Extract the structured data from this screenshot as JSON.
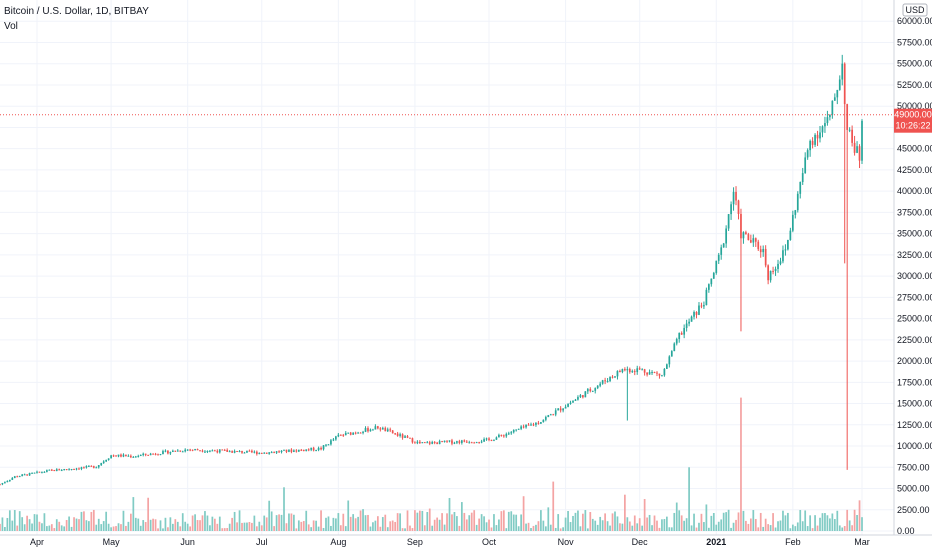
{
  "legend": {
    "symbol": "Bitcoin / U.S. Dollar, 1D, BITBAY",
    "vol": "Vol"
  },
  "price_axis": {
    "currency": "USD",
    "last_price_label": "49000.00",
    "countdown_label": "10:26:22"
  },
  "colors": {
    "up": "#26a69a",
    "down": "#ef5350",
    "vol_up": "#80cbc4",
    "vol_down": "#f4a3a3",
    "grid": "#f0f3fa",
    "price_line": "#ef5350"
  },
  "chart_data": {
    "type": "candlestick",
    "symbol": "Bitcoin / U.S. Dollar",
    "interval": "1D",
    "exchange": "BITBAY",
    "y_ticks": [
      "0.00",
      "2500.00",
      "5000.00",
      "7500.00",
      "10000.00",
      "12500.00",
      "15000.00",
      "17500.00",
      "20000.00",
      "22500.00",
      "25000.00",
      "27500.00",
      "30000.00",
      "32500.00",
      "35000.00",
      "37500.00",
      "40000.00",
      "42500.00",
      "45000.00",
      "47500.00",
      "50000.00",
      "52500.00",
      "55000.00",
      "57500.00",
      "60000.00"
    ],
    "x_ticks": [
      "Apr",
      "May",
      "Jun",
      "Jul",
      "Aug",
      "Sep",
      "Oct",
      "Nov",
      "Dec",
      "2021",
      "Feb",
      "Mar"
    ],
    "x_tick_dates": [
      "2020-04-01",
      "2020-05-01",
      "2020-06-01",
      "2020-07-01",
      "2020-08-01",
      "2020-09-01",
      "2020-10-01",
      "2020-11-01",
      "2020-12-01",
      "2021-01-01",
      "2021-02-01",
      "2021-03-01"
    ],
    "ylim": [
      0,
      62500
    ],
    "last_price": 49000,
    "price_anchors": [
      {
        "date": "2020-03-17",
        "price": 5500
      },
      {
        "date": "2020-03-23",
        "price": 6400
      },
      {
        "date": "2020-04-06",
        "price": 7100
      },
      {
        "date": "2020-04-25",
        "price": 7600
      },
      {
        "date": "2020-05-01",
        "price": 8900
      },
      {
        "date": "2020-05-10",
        "price": 8800
      },
      {
        "date": "2020-06-01",
        "price": 9600
      },
      {
        "date": "2020-07-01",
        "price": 9200
      },
      {
        "date": "2020-07-25",
        "price": 9700
      },
      {
        "date": "2020-08-01",
        "price": 11200
      },
      {
        "date": "2020-08-17",
        "price": 12200
      },
      {
        "date": "2020-09-03",
        "price": 10300
      },
      {
        "date": "2020-10-01",
        "price": 10700
      },
      {
        "date": "2020-10-21",
        "price": 12800
      },
      {
        "date": "2020-11-05",
        "price": 15500
      },
      {
        "date": "2020-11-24",
        "price": 19000
      },
      {
        "date": "2020-12-01",
        "price": 19000
      },
      {
        "date": "2020-12-10",
        "price": 18300
      },
      {
        "date": "2020-12-17",
        "price": 23000
      },
      {
        "date": "2020-12-27",
        "price": 27000
      },
      {
        "date": "2021-01-03",
        "price": 33000
      },
      {
        "date": "2021-01-08",
        "price": 40000
      },
      {
        "date": "2021-01-11",
        "price": 35000
      },
      {
        "date": "2021-01-20",
        "price": 33000
      },
      {
        "date": "2021-01-22",
        "price": 30000
      },
      {
        "date": "2021-01-29",
        "price": 33000
      },
      {
        "date": "2021-02-08",
        "price": 46000
      },
      {
        "date": "2021-02-16",
        "price": 48500
      },
      {
        "date": "2021-02-21",
        "price": 55000
      },
      {
        "date": "2021-02-23",
        "price": 47000
      },
      {
        "date": "2021-02-28",
        "price": 44000
      },
      {
        "date": "2021-03-01",
        "price": 49000
      }
    ],
    "volume_spikes": [
      {
        "date": "2020-12-21",
        "volume": 7500
      },
      {
        "date": "2021-01-11",
        "volume": 15700
      },
      {
        "date": "2021-02-26",
        "volume": 2500
      }
    ],
    "wicks": [
      {
        "date": "2021-02-22",
        "low": 31500
      },
      {
        "date": "2021-02-23",
        "low": 7200
      },
      {
        "date": "2021-01-11",
        "low": 23500
      },
      {
        "date": "2020-11-26",
        "low": 13000
      }
    ]
  }
}
